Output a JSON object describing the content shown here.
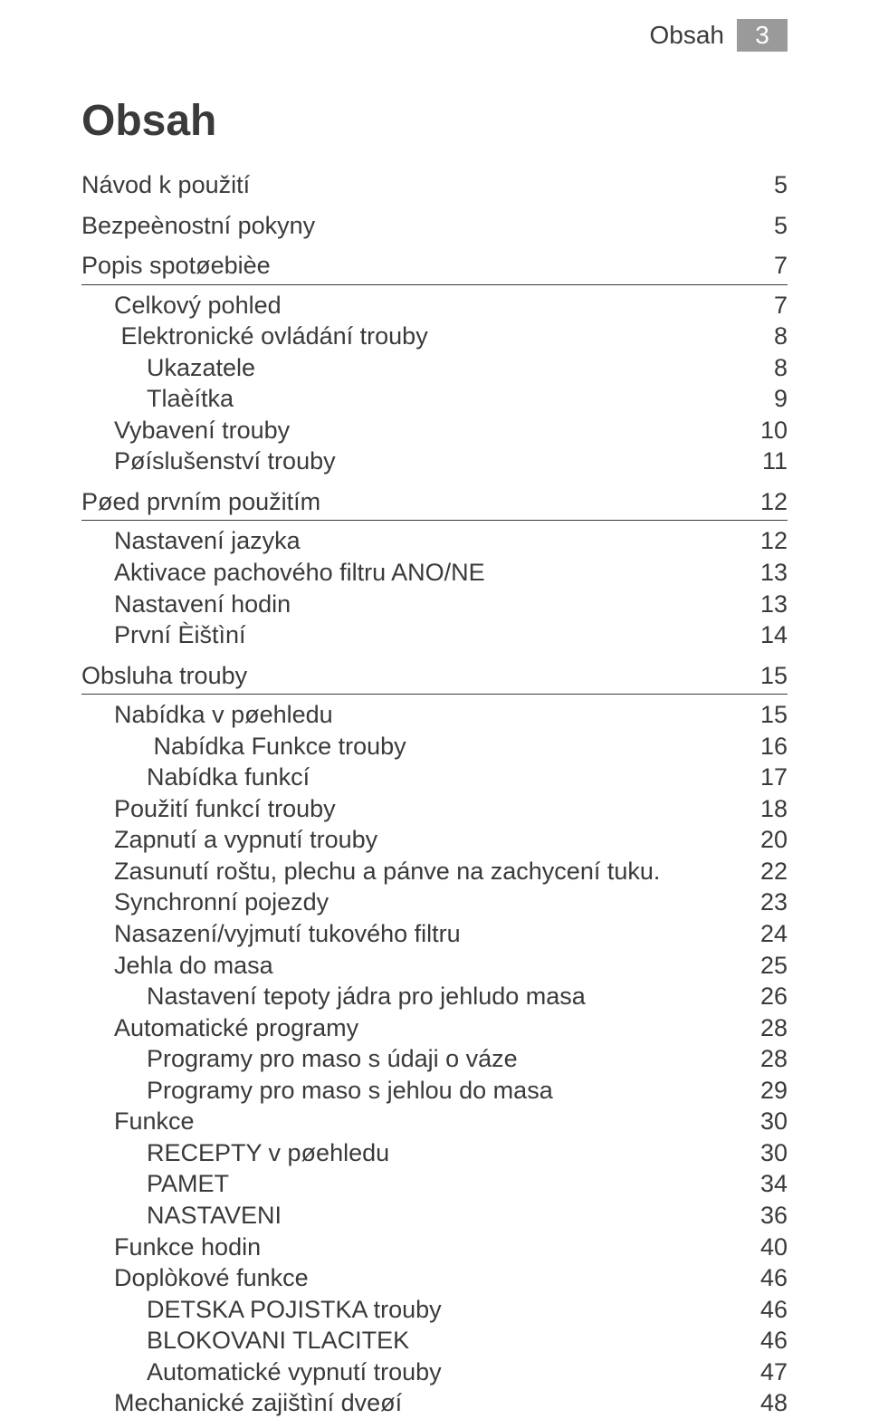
{
  "header": {
    "label": "Obsah",
    "page_number": "3",
    "badge_bg": "#9a9a9a",
    "badge_fg": "#ffffff"
  },
  "title": "Obsah",
  "colors": {
    "text": "#3a3a3a",
    "background": "#ffffff",
    "rule": "#3a3a3a"
  },
  "typography": {
    "title_fontsize_pt": 36,
    "body_fontsize_pt": 20,
    "font_family": "Arial"
  },
  "toc": [
    {
      "label": "Návod k použití",
      "page": "5",
      "level": 0,
      "gap_before": false,
      "rule_after": false
    },
    {
      "label": "Bezpeènostní pokyny",
      "page": "5",
      "level": 0,
      "gap_before": true,
      "rule_after": false
    },
    {
      "label": "Popis spotøebièe",
      "page": "7",
      "level": 0,
      "gap_before": true,
      "rule_after": true
    },
    {
      "label": "Celkový pohled",
      "page": "7",
      "level": 1
    },
    {
      "label": " Elektronické ovládání trouby",
      "page": "8",
      "level": 1
    },
    {
      "label": "Ukazatele",
      "page": "8",
      "level": 2
    },
    {
      "label": "Tlaèítka",
      "page": "9",
      "level": 2
    },
    {
      "label": "Vybavení trouby",
      "page": "10",
      "level": 1
    },
    {
      "label": "Pøíslušenství trouby",
      "page": "11",
      "level": 1
    },
    {
      "label": "Pøed prvním použitím",
      "page": "12",
      "level": 0,
      "gap_before": true,
      "rule_after": true
    },
    {
      "label": "Nastavení jazyka",
      "page": "12",
      "level": 1
    },
    {
      "label": "Aktivace pachového filtru ANO/NE",
      "page": "13",
      "level": 1
    },
    {
      "label": "Nastavení hodin",
      "page": "13",
      "level": 1
    },
    {
      "label": "První Èištìní",
      "page": "14",
      "level": 1
    },
    {
      "label": "Obsluha trouby",
      "page": "15",
      "level": 0,
      "gap_before": true,
      "rule_after": true
    },
    {
      "label": "Nabídka v pøehledu",
      "page": "15",
      "level": 1
    },
    {
      "label": " Nabídka Funkce trouby",
      "page": "16",
      "level": 2
    },
    {
      "label": "Nabídka funkcí",
      "page": "17",
      "level": 2
    },
    {
      "label": "Použití funkcí trouby",
      "page": "18",
      "level": 1
    },
    {
      "label": "Zapnutí a vypnutí trouby",
      "page": "20",
      "level": 1
    },
    {
      "label": "Zasunutí roštu, plechu a pánve na zachycení tuku.",
      "page": "22",
      "level": 1
    },
    {
      "label": "Synchronní pojezdy",
      "page": "23",
      "level": 1
    },
    {
      "label": "Nasazení/vyjmutí tukového filtru",
      "page": "24",
      "level": 1
    },
    {
      "label": "Jehla do masa",
      "page": "25",
      "level": 1
    },
    {
      "label": "Nastavení tepoty jádra pro jehludo masa",
      "page": "26",
      "level": 2
    },
    {
      "label": "Automatické programy",
      "page": "28",
      "level": 1
    },
    {
      "label": "Programy pro maso s údaji o váze",
      "page": "28",
      "level": 2
    },
    {
      "label": "Programy pro maso s jehlou do masa",
      "page": "29",
      "level": 2
    },
    {
      "label": "Funkce",
      "page": "30",
      "level": 1
    },
    {
      "label": "RECEPTY v pøehledu",
      "page": "30",
      "level": 2
    },
    {
      "label": "PAMET",
      "page": "34",
      "level": 2
    },
    {
      "label": "NASTAVENI",
      "page": "36",
      "level": 2
    },
    {
      "label": "Funkce hodin",
      "page": "40",
      "level": 1
    },
    {
      "label": "Doplòkové funkce",
      "page": "46",
      "level": 1
    },
    {
      "label": "DETSKA POJISTKA trouby",
      "page": "46",
      "level": 2
    },
    {
      "label": "BLOKOVANI TLACITEK",
      "page": "46",
      "level": 2
    },
    {
      "label": "Automatické vypnutí trouby",
      "page": "47",
      "level": 2
    },
    {
      "label": "Mechanické zajištìní dveøí",
      "page": "48",
      "level": 1
    }
  ]
}
